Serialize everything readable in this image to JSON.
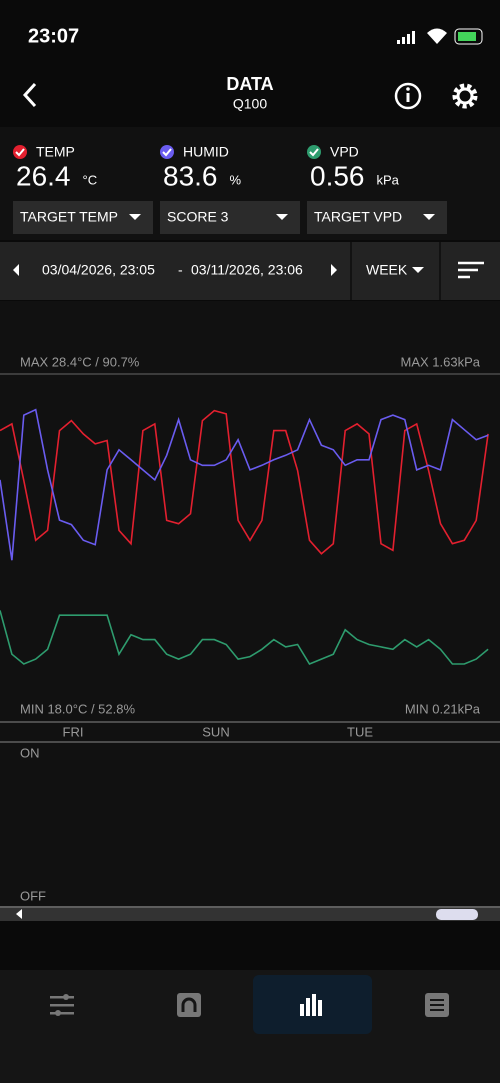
{
  "status": {
    "time": "23:07"
  },
  "header": {
    "title": "DATA",
    "subtitle": "Q100"
  },
  "sensors": [
    {
      "label": "TEMP",
      "value": 26.4,
      "unit": "°C"
    },
    {
      "label": "HUMID",
      "value": 83.6,
      "unit": "%"
    },
    {
      "label": "VPD",
      "value": 0.56,
      "unit": "kPa"
    }
  ],
  "dropdowns": [
    "TARGET TEMP",
    "SCORE 3",
    "TARGET VPD"
  ],
  "range": {
    "start": "03/04/2026, 23:05",
    "separator": "-",
    "end": "03/11/2026, 23:06",
    "period": "WEEK"
  },
  "graph": {
    "max_left": "MAX 28.4°C / 90.7%",
    "max_right": "MAX 1.63kPa",
    "min_left": "MIN 18.0°C / 52.8%",
    "min_right": "MIN 0.21kPa",
    "days": [
      "FRI",
      "SUN",
      "TUE"
    ],
    "on": "ON",
    "off": "OFF",
    "series": [
      {
        "color": "#e3202f",
        "ylim": [
          18.0,
          28.4
        ],
        "values": [
          26.7,
          26.9,
          25.2,
          23.4,
          23.7,
          26.7,
          27.0,
          26.6,
          26.3,
          26.4,
          23.7,
          23.3,
          26.7,
          26.9,
          24.0,
          23.9,
          24.2,
          27.0,
          27.3,
          27.2,
          24.0,
          23.4,
          24.0,
          26.7,
          26.7,
          25.5,
          23.4,
          23.0,
          23.3,
          26.7,
          26.9,
          26.6,
          23.3,
          23.1,
          26.7,
          26.9,
          25.5,
          23.9,
          23.3,
          23.4,
          24.0,
          26.6
        ]
      },
      {
        "color": "#6a5cf0",
        "ylim": [
          52.8,
          90.7
        ],
        "values": [
          79.1,
          70.3,
          86.2,
          86.8,
          80.2,
          74.7,
          74.2,
          72.5,
          72.0,
          80.2,
          82.4,
          81.3,
          80.2,
          79.1,
          81.8,
          85.7,
          81.3,
          80.7,
          80.7,
          81.3,
          83.5,
          80.2,
          80.7,
          81.3,
          81.8,
          82.4,
          85.7,
          82.9,
          82.4,
          80.7,
          81.3,
          81.3,
          85.7,
          86.2,
          85.7,
          80.2,
          80.7,
          80.2,
          85.7,
          84.6,
          83.5,
          84.0
        ]
      },
      {
        "color": "#2e9c6e",
        "ylim": [
          0.21,
          1.63
        ],
        "values": [
          0.66,
          0.48,
          0.44,
          0.46,
          0.5,
          0.64,
          0.64,
          0.64,
          0.64,
          0.64,
          0.48,
          0.56,
          0.54,
          0.54,
          0.48,
          0.46,
          0.48,
          0.54,
          0.54,
          0.52,
          0.46,
          0.47,
          0.5,
          0.54,
          0.51,
          0.52,
          0.44,
          0.46,
          0.48,
          0.58,
          0.54,
          0.52,
          0.51,
          0.5,
          0.54,
          0.51,
          0.54,
          0.5,
          0.44,
          0.44,
          0.46,
          0.5
        ]
      }
    ]
  }
}
